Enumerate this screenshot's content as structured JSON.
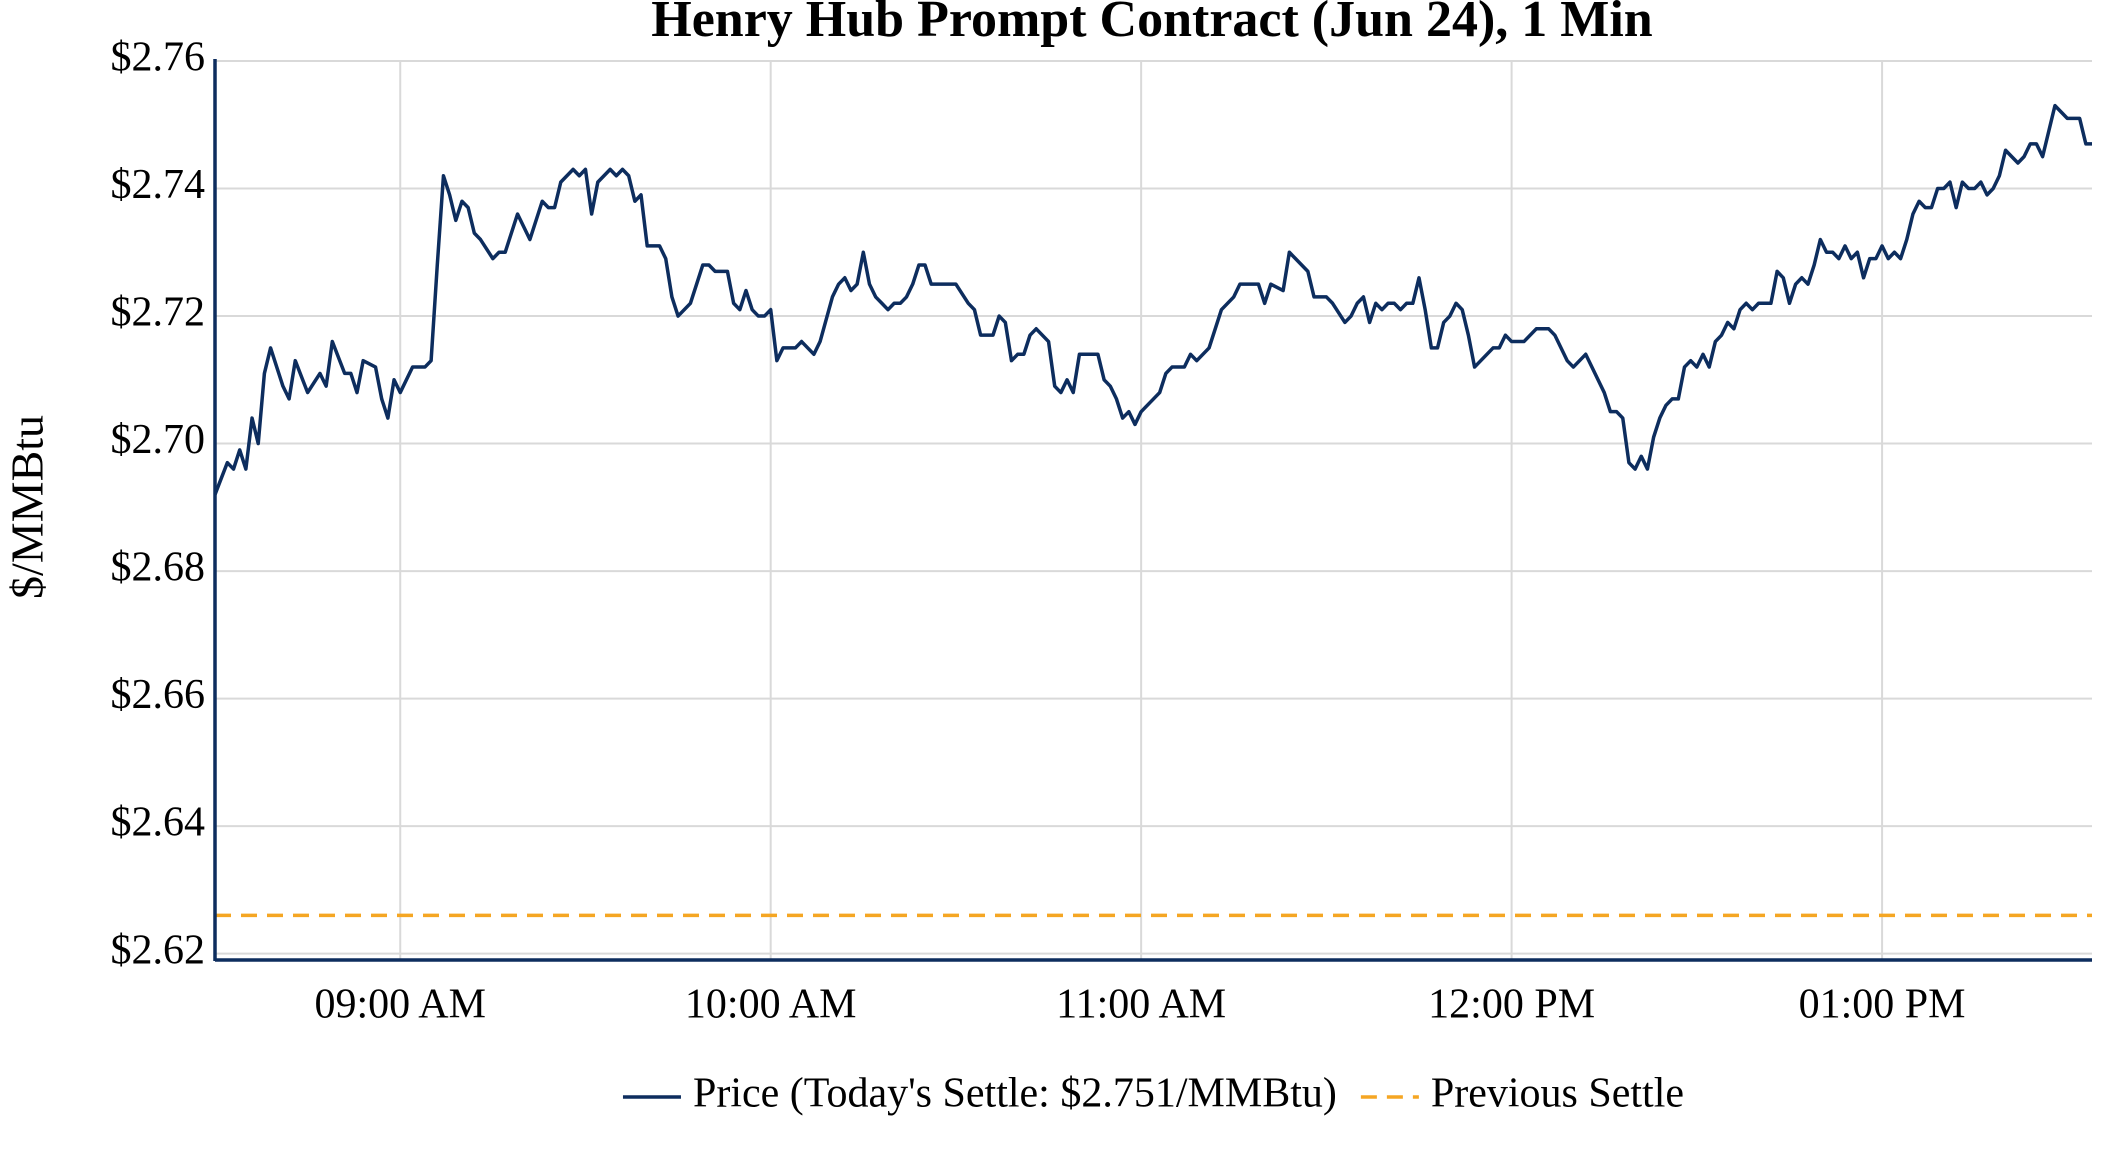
{
  "chart_data": {
    "type": "line",
    "title": "Henry Hub Prompt Contract (Jun 24), 1 Min",
    "ylabel": "$/MMBtu",
    "x": [
      510,
      512,
      513,
      514,
      515,
      516,
      517,
      518,
      519,
      521,
      522,
      523,
      525,
      527,
      528,
      529,
      531,
      532,
      533,
      534,
      536,
      537,
      538,
      539,
      540,
      542,
      544,
      545,
      546,
      547,
      548,
      549,
      550,
      551,
      552,
      553,
      555,
      556,
      557,
      559,
      560,
      561,
      563,
      564,
      565,
      566,
      568,
      569,
      570,
      571,
      572,
      574,
      575,
      576,
      577,
      578,
      579,
      580,
      582,
      583,
      584,
      585,
      587,
      588,
      589,
      590,
      591,
      593,
      594,
      595,
      596,
      597,
      598,
      599,
      600,
      601,
      602,
      604,
      605,
      606,
      607,
      608,
      610,
      611,
      612,
      613,
      614,
      615,
      616,
      617,
      618,
      619,
      620,
      621,
      622,
      623,
      624,
      625,
      626,
      628,
      629,
      630,
      632,
      633,
      634,
      636,
      637,
      638,
      639,
      640,
      641,
      642,
      643,
      645,
      646,
      647,
      648,
      649,
      650,
      652,
      653,
      654,
      655,
      656,
      657,
      658,
      659,
      660,
      662,
      663,
      664,
      665,
      666,
      667,
      668,
      669,
      670,
      671,
      673,
      674,
      675,
      676,
      678,
      679,
      680,
      681,
      683,
      684,
      685,
      687,
      688,
      689,
      690,
      691,
      693,
      694,
      695,
      696,
      697,
      698,
      699,
      700,
      701,
      702,
      703,
      704,
      705,
      706,
      707,
      708,
      709,
      710,
      711,
      712,
      713,
      714,
      716,
      717,
      718,
      719,
      720,
      721,
      722,
      724,
      725,
      726,
      727,
      728,
      729,
      730,
      732,
      733,
      735,
      736,
      737,
      738,
      739,
      740,
      741,
      742,
      743,
      744,
      745,
      746,
      747,
      748,
      749,
      750,
      751,
      752,
      753,
      754,
      755,
      756,
      757,
      758,
      759,
      760,
      761,
      762,
      763,
      764,
      765,
      766,
      767,
      768,
      769,
      770,
      771,
      772,
      773,
      774,
      775,
      776,
      777,
      778,
      779,
      780,
      781,
      782,
      783,
      784,
      785,
      786,
      787,
      788,
      789,
      790,
      791,
      792,
      793,
      794,
      795,
      796,
      797,
      798,
      799,
      800,
      801,
      802,
      803,
      804,
      805,
      806,
      807,
      808,
      809,
      810,
      811,
      812,
      813,
      814
    ],
    "series": [
      {
        "name": "Price (Today's Settle: $2.751/MMBtu)",
        "color": "#0d2d5e",
        "values": [
          2.692,
          2.697,
          2.696,
          2.699,
          2.696,
          2.704,
          2.7,
          2.711,
          2.715,
          2.709,
          2.707,
          2.713,
          2.708,
          2.711,
          2.709,
          2.716,
          2.711,
          2.711,
          2.708,
          2.713,
          2.712,
          2.707,
          2.704,
          2.71,
          2.708,
          2.712,
          2.712,
          2.713,
          2.728,
          2.742,
          2.739,
          2.735,
          2.738,
          2.737,
          2.733,
          2.732,
          2.729,
          2.73,
          2.73,
          2.736,
          2.734,
          2.732,
          2.738,
          2.737,
          2.737,
          2.741,
          2.743,
          2.742,
          2.743,
          2.736,
          2.741,
          2.743,
          2.742,
          2.743,
          2.742,
          2.738,
          2.739,
          2.731,
          2.731,
          2.729,
          2.723,
          2.72,
          2.722,
          2.725,
          2.728,
          2.728,
          2.727,
          2.727,
          2.722,
          2.721,
          2.724,
          2.721,
          2.72,
          2.72,
          2.721,
          2.713,
          2.715,
          2.715,
          2.716,
          2.715,
          2.714,
          2.716,
          2.723,
          2.725,
          2.726,
          2.724,
          2.725,
          2.73,
          2.725,
          2.723,
          2.722,
          2.721,
          2.722,
          2.722,
          2.723,
          2.725,
          2.728,
          2.728,
          2.725,
          2.725,
          2.725,
          2.725,
          2.722,
          2.721,
          2.717,
          2.717,
          2.72,
          2.719,
          2.713,
          2.714,
          2.714,
          2.717,
          2.718,
          2.716,
          2.709,
          2.708,
          2.71,
          2.708,
          2.714,
          2.714,
          2.714,
          2.71,
          2.709,
          2.707,
          2.704,
          2.705,
          2.703,
          2.705,
          2.707,
          2.708,
          2.711,
          2.712,
          2.712,
          2.712,
          2.714,
          2.713,
          2.714,
          2.715,
          2.721,
          2.722,
          2.723,
          2.725,
          2.725,
          2.725,
          2.722,
          2.725,
          2.724,
          2.73,
          2.729,
          2.727,
          2.723,
          2.723,
          2.723,
          2.722,
          2.719,
          2.72,
          2.722,
          2.723,
          2.719,
          2.722,
          2.721,
          2.722,
          2.722,
          2.721,
          2.722,
          2.722,
          2.726,
          2.721,
          2.715,
          2.715,
          2.719,
          2.72,
          2.722,
          2.721,
          2.717,
          2.712,
          2.714,
          2.715,
          2.715,
          2.717,
          2.716,
          2.716,
          2.716,
          2.718,
          2.718,
          2.718,
          2.717,
          2.715,
          2.713,
          2.712,
          2.714,
          2.712,
          2.708,
          2.705,
          2.705,
          2.704,
          2.697,
          2.696,
          2.698,
          2.696,
          2.701,
          2.704,
          2.706,
          2.707,
          2.707,
          2.712,
          2.713,
          2.712,
          2.714,
          2.712,
          2.716,
          2.717,
          2.719,
          2.718,
          2.721,
          2.722,
          2.721,
          2.722,
          2.722,
          2.722,
          2.727,
          2.726,
          2.722,
          2.725,
          2.726,
          2.725,
          2.728,
          2.732,
          2.73,
          2.73,
          2.729,
          2.731,
          2.729,
          2.73,
          2.726,
          2.729,
          2.729,
          2.731,
          2.729,
          2.73,
          2.729,
          2.732,
          2.736,
          2.738,
          2.737,
          2.737,
          2.74,
          2.74,
          2.741,
          2.737,
          2.741,
          2.74,
          2.74,
          2.741,
          2.739,
          2.74,
          2.742,
          2.746,
          2.745,
          2.744,
          2.745,
          2.747,
          2.747,
          2.745,
          2.749,
          2.753,
          2.752,
          2.751,
          2.751,
          2.751,
          2.747,
          2.747
        ]
      }
    ],
    "reference_lines": [
      {
        "name": "Previous Settle",
        "value": 2.626,
        "color": "#f5a623",
        "dashed": true
      }
    ],
    "xlim": [
      510,
      814
    ],
    "xticks": [
      {
        "value": 540,
        "label": "09:00 AM"
      },
      {
        "value": 600,
        "label": "10:00 AM"
      },
      {
        "value": 660,
        "label": "11:00 AM"
      },
      {
        "value": 720,
        "label": "12:00 PM"
      },
      {
        "value": 780,
        "label": "01:00 PM"
      }
    ],
    "ylim": [
      2.619,
      2.76
    ],
    "yticks": [
      {
        "value": 2.62,
        "label": "$2.62"
      },
      {
        "value": 2.64,
        "label": "$2.64"
      },
      {
        "value": 2.66,
        "label": "$2.66"
      },
      {
        "value": 2.68,
        "label": "$2.68"
      },
      {
        "value": 2.7,
        "label": "$2.70"
      },
      {
        "value": 2.72,
        "label": "$2.72"
      },
      {
        "value": 2.74,
        "label": "$2.74"
      },
      {
        "value": 2.76,
        "label": "$2.76"
      }
    ],
    "grid": true,
    "axis_color": "#0d2d5e",
    "legend": "bottom"
  }
}
